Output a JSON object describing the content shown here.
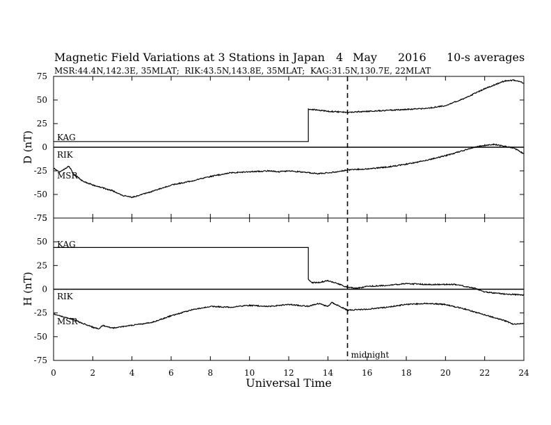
{
  "chart_data": [
    {
      "type": "line",
      "panel": "D",
      "title": "Magnetic Field Variations at 3 Stations in Japan",
      "date": {
        "day": "4",
        "month": "May",
        "year": "2016"
      },
      "averaging": "10-s averages",
      "subtitle": "MSR:44.4N,142.3E, 35MLAT;  RIK:43.5N,143.8E, 35MLAT;  KAG:31.5N,130.7E, 22MLAT",
      "ylabel": "D (nT)",
      "xlabel": "Universal Time",
      "xlim": [
        0,
        24
      ],
      "ylim": [
        -75,
        75
      ],
      "xticks": [
        0,
        2,
        4,
        6,
        8,
        10,
        12,
        14,
        16,
        18,
        20,
        22,
        24
      ],
      "yticks": [
        75,
        50,
        25,
        0,
        -25,
        -50,
        -75
      ],
      "zero_line": 0,
      "series": [
        {
          "name": "KAG",
          "x": [
            0,
            13,
            13,
            13.2,
            14,
            15,
            16,
            17,
            18,
            19,
            20,
            21,
            22,
            23,
            23.5,
            24
          ],
          "y": [
            6,
            6,
            40,
            40,
            38,
            37,
            38,
            39,
            40,
            41,
            44,
            52,
            62,
            70,
            71,
            68
          ]
        },
        {
          "name": "RIK",
          "x": [
            0,
            24
          ],
          "y": [
            0,
            0
          ]
        },
        {
          "name": "MSR",
          "x": [
            0,
            0.3,
            0.5,
            0.8,
            1,
            1.5,
            2,
            3,
            3.5,
            4,
            4.5,
            5,
            6,
            7,
            8,
            9,
            10,
            11,
            11.5,
            12,
            13,
            13.5,
            14,
            14.5,
            15,
            16,
            17,
            18,
            19,
            20,
            21,
            21.5,
            22,
            22.5,
            23,
            23.5,
            24
          ],
          "y": [
            -22,
            -26,
            -24,
            -20,
            -28,
            -36,
            -40,
            -46,
            -51,
            -53,
            -50,
            -47,
            -40,
            -36,
            -31,
            -27,
            -26,
            -25,
            -26,
            -25,
            -27,
            -28,
            -27,
            -26,
            -24,
            -23,
            -21,
            -18,
            -14,
            -9,
            -3,
            0,
            2,
            3,
            1,
            -1,
            -7
          ]
        }
      ]
    },
    {
      "type": "line",
      "panel": "H",
      "ylabel": "H (nT)",
      "xlabel": "Universal Time",
      "xlim": [
        0,
        24
      ],
      "ylim": [
        -75,
        75
      ],
      "xticks": [
        0,
        2,
        4,
        6,
        8,
        10,
        12,
        14,
        16,
        18,
        20,
        22,
        24
      ],
      "yticks": [
        75,
        50,
        25,
        0,
        -25,
        -50,
        -75
      ],
      "zero_line": 0,
      "series": [
        {
          "name": "KAG",
          "x": [
            0,
            13,
            13,
            13.2,
            13.5,
            14,
            14.5,
            15,
            15.5,
            16,
            17,
            18,
            19,
            20,
            20.5,
            21,
            21.5,
            22,
            22.5,
            23,
            24
          ],
          "y": [
            44,
            44,
            10,
            7,
            7,
            9,
            6,
            2,
            1,
            3,
            4,
            6,
            5,
            5,
            5,
            3,
            1,
            -3,
            -4,
            -5,
            -6
          ]
        },
        {
          "name": "RIK",
          "x": [
            0,
            24
          ],
          "y": [
            0,
            0
          ]
        },
        {
          "name": "MSR",
          "x": [
            0,
            0.5,
            1,
            1.5,
            2,
            2.3,
            2.5,
            3,
            4,
            5,
            6,
            7,
            8,
            9,
            10,
            11,
            12,
            13,
            13.5,
            14,
            14.2,
            15,
            16,
            17,
            18,
            19,
            20,
            21,
            22,
            23,
            23.5,
            24
          ],
          "y": [
            -26,
            -29,
            -32,
            -36,
            -40,
            -42,
            -38,
            -41,
            -38,
            -35,
            -28,
            -22,
            -18,
            -19,
            -17,
            -18,
            -16,
            -18,
            -15,
            -18,
            -14,
            -22,
            -21,
            -19,
            -16,
            -15,
            -16,
            -21,
            -27,
            -33,
            -37,
            -36
          ]
        }
      ]
    }
  ],
  "annotations": {
    "midnight_label": "midnight",
    "midnight_ut": 15,
    "station_labels": [
      "KAG",
      "RIK",
      "MSR"
    ]
  }
}
